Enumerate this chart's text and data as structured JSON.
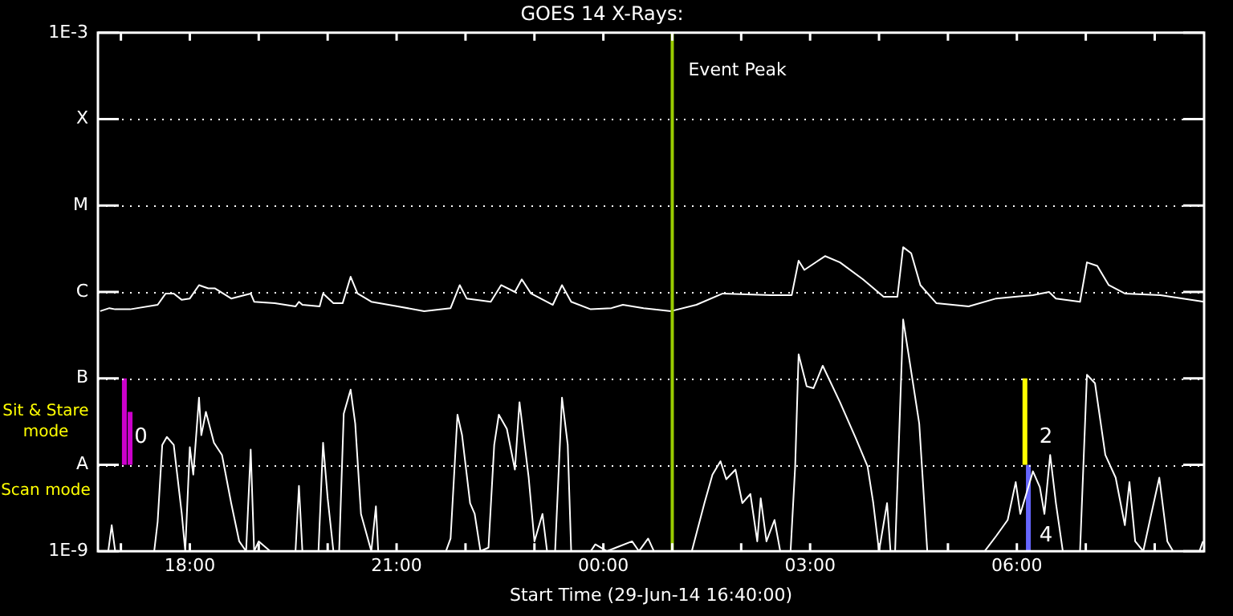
{
  "chart_data": {
    "type": "line",
    "title": "GOES 14 X-Rays:",
    "xlabel": "Start Time (29-Jun-14 16:40:00)",
    "xlim": [
      "--06-29T16:40",
      "--06-30T08:43"
    ],
    "xticks": [
      {
        "value": "--06-29T17:00",
        "label": null
      },
      {
        "value": "--06-29T18:00",
        "label": "18:00"
      },
      {
        "value": "--06-29T19:00",
        "label": null
      },
      {
        "value": "--06-29T20:00",
        "label": null
      },
      {
        "value": "--06-29T21:00",
        "label": "21:00"
      },
      {
        "value": "--06-29T22:00",
        "label": null
      },
      {
        "value": "--06-29T23:00",
        "label": null
      },
      {
        "value": "--06-30T00:00",
        "label": "00:00"
      },
      {
        "value": "--06-30T01:00",
        "label": null
      },
      {
        "value": "--06-30T02:00",
        "label": null
      },
      {
        "value": "--06-30T03:00",
        "label": "03:00"
      },
      {
        "value": "--06-30T04:00",
        "label": null
      },
      {
        "value": "--06-30T05:00",
        "label": null
      },
      {
        "value": "--06-30T06:00",
        "label": "06:00"
      },
      {
        "value": "--06-30T07:00",
        "label": null
      },
      {
        "value": "--06-30T08:00",
        "label": null
      }
    ],
    "ylim": [
      1e-09,
      0.001
    ],
    "yticks": [
      {
        "value": 1e-09,
        "label": "1E-9"
      },
      {
        "value": 1e-08,
        "label": "A"
      },
      {
        "value": 1e-07,
        "label": "B"
      },
      {
        "value": 1e-06,
        "label": "C"
      },
      {
        "value": 1e-05,
        "label": "M"
      },
      {
        "value": 0.0001,
        "label": "X"
      },
      {
        "value": 0.001,
        "label": "1E-3"
      }
    ],
    "log": "y",
    "grid": "y",
    "legend": false,
    "marker": "none",
    "line_style": "solid",
    "series": [
      {
        "color": "#ffffff",
        "x": [
          "--06-29T16:42",
          "--06-29T16:50",
          "--06-29T16:55",
          "--06-29T17:08",
          "--06-29T17:32",
          "--06-29T17:39",
          "--06-29T17:46",
          "--06-29T17:53",
          "--06-29T18:00",
          "--06-29T18:08",
          "--06-29T18:16",
          "--06-29T18:22",
          "--06-29T18:36",
          "--06-29T18:53",
          "--06-29T18:56",
          "--06-29T19:14",
          "--06-29T19:32",
          "--06-29T19:35",
          "--06-29T19:38",
          "--06-29T19:53",
          "--06-29T19:56",
          "--06-29T20:05",
          "--06-29T20:13",
          "--06-29T20:20",
          "--06-29T20:26",
          "--06-29T20:38",
          "--06-29T21:01",
          "--06-29T21:24",
          "--06-29T21:47",
          "--06-29T21:55",
          "--06-29T22:01",
          "--06-29T22:22",
          "--06-29T22:31",
          "--06-29T22:43",
          "--06-29T22:49",
          "--06-29T22:57",
          "--06-29T23:16",
          "--06-29T23:24",
          "--06-29T23:32",
          "--06-29T23:49",
          "--06-30T00:07",
          "--06-30T00:17",
          "--06-30T00:35",
          "--06-30T00:59",
          "--06-30T01:21",
          "--06-30T01:44",
          "--06-30T02:26",
          "--06-30T02:44",
          "--06-30T02:50",
          "--06-30T02:55",
          "--06-30T03:13",
          "--06-30T03:26",
          "--06-30T03:46",
          "--06-30T04:04",
          "--06-30T04:16",
          "--06-30T04:21",
          "--06-30T04:28",
          "--06-30T04:36",
          "--06-30T04:50",
          "--06-30T05:18",
          "--06-30T05:42",
          "--06-30T06:14",
          "--06-30T06:28",
          "--06-30T06:34",
          "--06-30T06:55",
          "--06-30T07:01",
          "--06-30T07:10",
          "--06-30T07:20",
          "--06-30T07:34",
          "--06-30T08:05",
          "--06-30T08:43"
        ],
        "values": [
          6e-07,
          6.5e-07,
          6.3e-07,
          6.3e-07,
          7.1e-07,
          9.6e-07,
          9.6e-07,
          8.1e-07,
          8.4e-07,
          1.2e-06,
          1.1e-06,
          1.1e-06,
          8.4e-07,
          9.6e-07,
          7.7e-07,
          7.4e-07,
          6.8e-07,
          7.7e-07,
          7.1e-07,
          6.8e-07,
          9.6e-07,
          7.4e-07,
          7.4e-07,
          1.5e-06,
          9.6e-07,
          7.7e-07,
          6.8e-07,
          6e-07,
          6.5e-07,
          1.2e-06,
          8.4e-07,
          7.7e-07,
          1.2e-06,
          1e-06,
          1.4e-06,
          9.6e-07,
          7.1e-07,
          1.2e-06,
          7.7e-07,
          6.3e-07,
          6.5e-07,
          7.1e-07,
          6.5e-07,
          6e-07,
          7.1e-07,
          9.6e-07,
          9.2e-07,
          9.2e-07,
          2.3e-06,
          1.8e-06,
          2.6e-06,
          2.2e-06,
          1.4e-06,
          8.8e-07,
          8.8e-07,
          3.3e-06,
          2.8e-06,
          1.2e-06,
          7.4e-07,
          6.8e-07,
          8.4e-07,
          9.2e-07,
          1e-06,
          8.4e-07,
          7.7e-07,
          2.2e-06,
          2e-06,
          1.2e-06,
          9.6e-07,
          9.2e-07,
          7.7e-07
        ]
      },
      {
        "color": "#ffffff",
        "x": [
          "--06-29T16:49",
          "--06-29T16:52",
          "--06-29T16:55",
          "--06-29T17:29",
          "--06-29T17:32",
          "--06-29T17:36",
          "--06-29T17:40",
          "--06-29T17:46",
          "--06-29T17:53",
          "--06-29T17:56",
          "--06-29T18:00",
          "--06-29T18:03",
          "--06-29T18:08",
          "--06-29T18:10",
          "--06-29T18:14",
          "--06-29T18:21",
          "--06-29T18:28",
          "--06-29T18:36",
          "--06-29T18:43",
          "--06-29T18:49",
          "--06-29T18:53",
          "--06-29T18:56",
          "--06-29T19:00",
          "--06-29T19:10",
          "--06-29T19:32",
          "--06-29T19:35",
          "--06-29T19:38",
          "--06-29T19:52",
          "--06-29T19:56",
          "--06-29T20:00",
          "--06-29T20:05",
          "--06-29T20:10",
          "--06-29T20:14",
          "--06-29T20:20",
          "--06-29T20:24",
          "--06-29T20:29",
          "--06-29T20:38",
          "--06-29T20:42",
          "--06-29T20:44",
          "--06-29T21:10",
          "--06-29T21:43",
          "--06-29T21:47",
          "--06-29T21:53",
          "--06-29T21:57",
          "--06-29T22:04",
          "--06-29T22:08",
          "--06-29T22:13",
          "--06-29T22:20",
          "--06-29T22:25",
          "--06-29T22:29",
          "--06-29T22:36",
          "--06-29T22:43",
          "--06-29T22:47",
          "--06-29T22:55",
          "--06-29T23:00",
          "--06-29T23:07",
          "--06-29T23:11",
          "--06-29T23:18",
          "--06-29T23:24",
          "--06-29T23:29",
          "--06-29T23:32",
          "--06-29T23:49",
          "--06-29T23:53",
          "--06-30T00:03",
          "--06-30T00:11",
          "--06-30T00:25",
          "--06-30T00:31",
          "--06-30T00:39",
          "--06-30T00:44",
          "--06-30T01:17",
          "--06-30T01:28",
          "--06-30T01:35",
          "--06-30T01:42",
          "--06-30T01:47",
          "--06-30T01:55",
          "--06-30T02:01",
          "--06-30T02:08",
          "--06-30T02:14",
          "--06-30T02:17",
          "--06-30T02:22",
          "--06-30T02:29",
          "--06-30T02:34",
          "--06-30T02:43",
          "--06-30T02:47",
          "--06-30T02:50",
          "--06-30T02:57",
          "--06-30T03:03",
          "--06-30T03:11",
          "--06-30T03:26",
          "--06-30T03:40",
          "--06-30T03:50",
          "--06-30T03:55",
          "--06-30T04:00",
          "--06-30T04:07",
          "--06-30T04:10",
          "--06-30T04:14",
          "--06-30T04:21",
          "--06-30T04:28",
          "--06-30T04:35",
          "--06-30T04:42",
          "--06-30T05:04",
          "--06-30T05:32",
          "--06-30T05:42",
          "--06-30T05:52",
          "--06-30T05:59",
          "--06-30T06:03",
          "--06-30T06:14",
          "--06-30T06:20",
          "--06-30T06:24",
          "--06-30T06:29",
          "--06-30T06:34",
          "--06-30T06:40",
          "--06-30T06:55",
          "--06-30T07:01",
          "--06-30T07:08",
          "--06-30T07:17",
          "--06-30T07:26",
          "--06-30T07:34",
          "--06-30T07:38",
          "--06-30T07:43",
          "--06-30T07:50",
          "--06-30T07:57",
          "--06-30T08:04",
          "--06-30T08:11",
          "--06-30T08:16",
          "--06-30T08:39",
          "--06-30T08:42"
        ],
        "values": [
          1e-09,
          2e-09,
          1e-09,
          1e-09,
          2.2e-09,
          1.7e-08,
          2.1e-08,
          1.7e-08,
          2.7e-09,
          1e-09,
          1.6e-08,
          7.7e-09,
          6e-08,
          2.2e-08,
          4.1e-08,
          1.8e-08,
          1.3e-08,
          3.6e-09,
          1.3e-09,
          1e-09,
          1.5e-08,
          1e-09,
          1.3e-09,
          1e-09,
          1e-09,
          5.7e-09,
          1e-09,
          1e-09,
          1.8e-08,
          4.1e-09,
          1e-09,
          1e-09,
          3.9e-08,
          7.4e-08,
          3e-08,
          2.7e-09,
          1e-09,
          3.3e-09,
          1e-09,
          1e-09,
          1e-09,
          1.4e-09,
          3.8e-08,
          2.2e-08,
          3.6e-09,
          2.7e-09,
          1e-09,
          1.1e-09,
          1.7e-08,
          3.8e-08,
          2.6e-08,
          8.8e-09,
          5.3e-08,
          7.1e-09,
          1.3e-09,
          2.7e-09,
          1e-09,
          1e-09,
          6e-08,
          1.7e-08,
          1e-09,
          1e-09,
          1.2e-09,
          1e-09,
          1.1e-09,
          1.3e-09,
          1e-09,
          1.4e-09,
          1e-09,
          1e-09,
          3.6e-09,
          7.7e-09,
          1.1e-08,
          6.8e-09,
          8.8e-09,
          3.6e-09,
          4.6e-09,
          1.3e-09,
          4.1e-09,
          1.3e-09,
          2.3e-09,
          1e-09,
          1e-09,
          9.6e-09,
          1.9e-07,
          8.1e-08,
          7.7e-08,
          1.4e-07,
          5.3e-08,
          2e-08,
          9.6e-09,
          3.6e-09,
          1e-09,
          3.6e-09,
          1e-09,
          1e-09,
          4.8e-07,
          1.2e-07,
          3e-08,
          1e-09,
          1e-09,
          1e-09,
          1.5e-09,
          2.3e-09,
          6.3e-09,
          2.7e-09,
          8.4e-09,
          5.5e-09,
          2.7e-09,
          1.3e-08,
          3.6e-09,
          1e-09,
          1e-09,
          1.1e-07,
          8.8e-08,
          1.3e-08,
          7.1e-09,
          2e-09,
          6.3e-09,
          1.3e-09,
          1e-09,
          2.7e-09,
          7.1e-09,
          1.3e-09,
          1e-09,
          1e-09,
          1.3e-09
        ]
      },
      {
        "color": "#cc00cc",
        "x": [
          "--06-29T17:03",
          "--06-29T17:03"
        ],
        "values": [
          1e-08,
          1e-07
        ]
      },
      {
        "color": "#cc00cc",
        "x": [
          "--06-29T17:08",
          "--06-29T17:08"
        ],
        "values": [
          1e-08,
          4.1e-08
        ]
      },
      {
        "color": "#ffff00",
        "x": [
          "--06-30T06:07",
          "--06-30T06:07"
        ],
        "values": [
          1e-08,
          1e-07
        ]
      },
      {
        "color": "#6666ff",
        "x": [
          "--06-30T06:10",
          "--06-30T06:10"
        ],
        "values": [
          1e-09,
          1e-08
        ]
      }
    ],
    "ref_lines": [
      {
        "axis": "x",
        "value": "--06-30T01:00",
        "label": "Event Peak",
        "color": "#99cc00"
      }
    ],
    "annotations": [
      "Sit & Stare mode",
      "Scan mode",
      {
        "text": "0",
        "x": "--06-29T17:06",
        "y": 2.1e-08
      },
      {
        "text": "2",
        "x": "--06-30T06:14",
        "y": 2.1e-08
      },
      {
        "text": "4",
        "x": "--06-30T06:14",
        "y": 1.5e-09
      }
    ]
  }
}
